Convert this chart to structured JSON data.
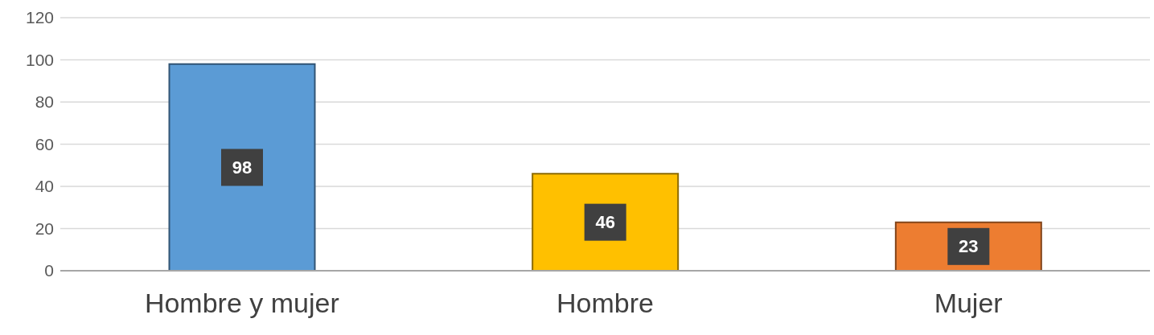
{
  "chart_data": {
    "type": "bar",
    "categories": [
      "Hombre y mujer",
      "Hombre",
      "Mujer"
    ],
    "values": [
      98,
      46,
      23
    ],
    "colors": [
      "#5b9bd5",
      "#ffc000",
      "#ed7d31"
    ],
    "ylim": [
      0,
      120
    ],
    "yticks": [
      0,
      20,
      40,
      60,
      80,
      100,
      120
    ],
    "grid": "y",
    "data_labels": true
  }
}
